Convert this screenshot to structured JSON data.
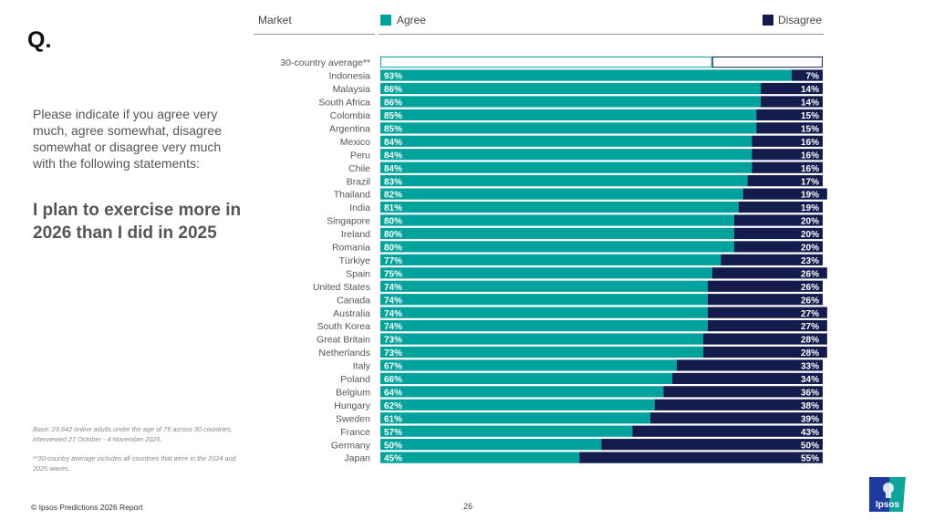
{
  "page": {
    "q_mark": "Q.",
    "question": "Please indicate if you agree very much, agree somewhat, disagree somewhat or disagree very much with the following statements:",
    "statement": "I plan to exercise more in 2026 than I did in 2025",
    "base_note": "Base: 23,642 online adults under the age of 75 across 30 countries, interviewed 27 October - 4 November 2025.",
    "average_note": "**30-country average includes all countries that were in the 2024 and 2025 waves.",
    "footer": "© Ipsos Predictions 2026 Report",
    "page_number": "26",
    "logo_text": "Ipsos"
  },
  "colors": {
    "agree": "#00A29C",
    "disagree": "#141B4D",
    "logo_blue": "#1D3A9C",
    "logo_teal": "#0FA59A"
  },
  "chart_data": {
    "type": "bar",
    "orientation": "horizontal-stacked-100",
    "category_header": "Market",
    "legend": [
      "Agree",
      "Disagree"
    ],
    "legend_placement": "top",
    "categories": [
      "30-country average**",
      "Indonesia",
      "Malaysia",
      "South Africa",
      "Colombia",
      "Argentina",
      "Mexico",
      "Peru",
      "Chile",
      "Brazil",
      "Thailand",
      "India",
      "Singapore",
      "Ireland",
      "Romania",
      "Türkiye",
      "Spain",
      "United States",
      "Canada",
      "Australia",
      "South Korea",
      "Great Britain",
      "Netherlands",
      "Italy",
      "Poland",
      "Belgium",
      "Hungary",
      "Sweden",
      "France",
      "Germany",
      "Japan"
    ],
    "series": [
      {
        "name": "Agree",
        "values": [
          75,
          93,
          86,
          86,
          85,
          85,
          84,
          84,
          84,
          83,
          82,
          81,
          80,
          80,
          80,
          77,
          75,
          74,
          74,
          74,
          74,
          73,
          73,
          67,
          66,
          64,
          62,
          61,
          57,
          50,
          45
        ]
      },
      {
        "name": "Disagree",
        "values": [
          25,
          7,
          14,
          14,
          15,
          15,
          16,
          16,
          16,
          17,
          19,
          19,
          20,
          20,
          20,
          23,
          26,
          26,
          26,
          27,
          27,
          28,
          28,
          33,
          34,
          36,
          38,
          39,
          43,
          50,
          55
        ]
      }
    ],
    "highlighted_category": "30-country average**",
    "value_suffix": "%",
    "xlim": [
      0,
      100
    ]
  }
}
